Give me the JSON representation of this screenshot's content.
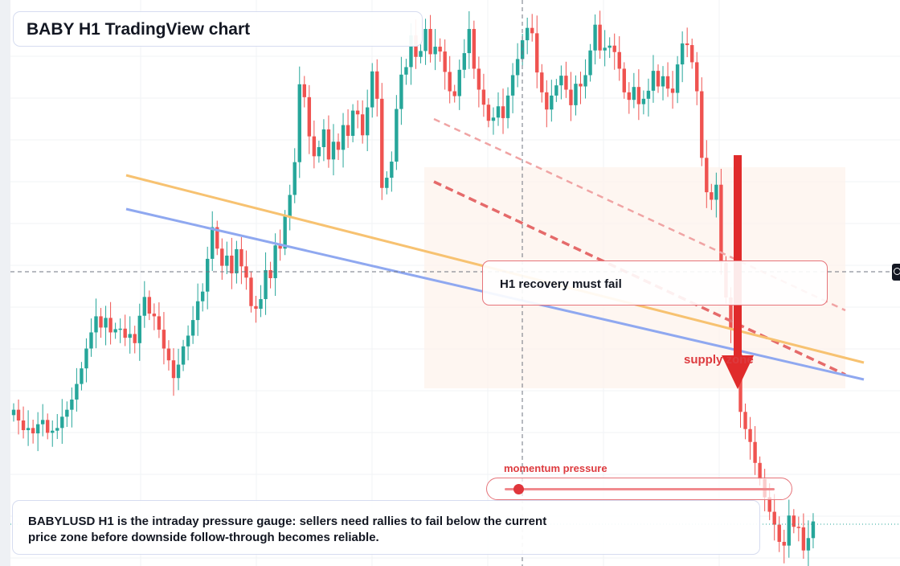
{
  "title": "BABY H1 TradingView chart",
  "note": "H1 recovery must fail",
  "supply_label": "supply zone",
  "gauge": {
    "label": "momentum pressure",
    "level": 0.05
  },
  "caption": "BABYLUSD H1 is the intraday pressure gauge: sellers need rallies to fail below the current price zone before downside follow-through becomes reliable.",
  "colors": {
    "up": "#26a69a",
    "down": "#ef5350",
    "ma_fast": "#f7c271",
    "ma_slow": "#8fa8f0",
    "trend": "#e05a5a",
    "arrow": "#e02b2b",
    "zone": "#fdf3ec"
  },
  "chart_data": {
    "type": "candlestick",
    "symbol": "BABYLUSD",
    "timeframe": "H1",
    "ylim": [
      0,
      100
    ],
    "series": [
      {
        "name": "candles",
        "values": [
          [
            0,
            27.0
          ],
          [
            1,
            25.0
          ],
          [
            2,
            23.2
          ],
          [
            3,
            23.6
          ],
          [
            4,
            22.6
          ],
          [
            5,
            24.3
          ],
          [
            6,
            25.1
          ],
          [
            7,
            22.7
          ],
          [
            8,
            23.1
          ],
          [
            9,
            23.6
          ],
          [
            10,
            25.7
          ],
          [
            11,
            27.0
          ],
          [
            12,
            28.9
          ],
          [
            13,
            31.8
          ],
          [
            14,
            34.7
          ],
          [
            15,
            38.4
          ],
          [
            16,
            41.4
          ],
          [
            17,
            44.4
          ],
          [
            18,
            42.3
          ],
          [
            19,
            44.1
          ],
          [
            20,
            41.4
          ],
          [
            21,
            42.0
          ],
          [
            22,
            42.1
          ],
          [
            23,
            40.4
          ],
          [
            24,
            41.1
          ],
          [
            25,
            39.4
          ],
          [
            26,
            44.5
          ],
          [
            27,
            48.0
          ],
          [
            28,
            44.9
          ],
          [
            29,
            44.4
          ],
          [
            30,
            41.9
          ],
          [
            31,
            38.4
          ],
          [
            32,
            36.2
          ],
          [
            33,
            32.9
          ],
          [
            34,
            35.4
          ],
          [
            35,
            38.8
          ],
          [
            36,
            40.8
          ],
          [
            37,
            43.7
          ],
          [
            38,
            47.2
          ],
          [
            39,
            49.0
          ],
          [
            40,
            55.1
          ],
          [
            41,
            61.0
          ],
          [
            42,
            57.0
          ],
          [
            43,
            53.8
          ],
          [
            44,
            55.7
          ],
          [
            45,
            52.4
          ],
          [
            46,
            56.9
          ],
          [
            47,
            53.7
          ],
          [
            48,
            51.6
          ],
          [
            49,
            46.3
          ],
          [
            50,
            45.8
          ],
          [
            51,
            47.6
          ],
          [
            52,
            53.0
          ],
          [
            53,
            51.5
          ],
          [
            54,
            57.6
          ],
          [
            55,
            57.0
          ],
          [
            56,
            63.0
          ],
          [
            57,
            67.0
          ],
          [
            58,
            73.1
          ],
          [
            59,
            87.6
          ],
          [
            60,
            85.2
          ],
          [
            61,
            77.9
          ],
          [
            62,
            74.2
          ],
          [
            63,
            75.9
          ],
          [
            64,
            79.2
          ],
          [
            65,
            73.6
          ],
          [
            66,
            76.9
          ],
          [
            67,
            75.4
          ],
          [
            68,
            80.0
          ],
          [
            69,
            78.0
          ],
          [
            70,
            82.7
          ],
          [
            71,
            82.0
          ],
          [
            72,
            78.1
          ],
          [
            73,
            83.3
          ],
          [
            74,
            90.0
          ],
          [
            75,
            84.9
          ],
          [
            76,
            68.3
          ],
          [
            77,
            70.2
          ],
          [
            78,
            73.2
          ],
          [
            79,
            83.0
          ],
          [
            80,
            89.4
          ],
          [
            81,
            90.8
          ],
          [
            82,
            96.7
          ],
          [
            83,
            92.7
          ],
          [
            84,
            93.8
          ],
          [
            85,
            97.9
          ],
          [
            86,
            93.2
          ],
          [
            87,
            94.6
          ],
          [
            88,
            93.7
          ],
          [
            89,
            89.9
          ],
          [
            90,
            86.3
          ],
          [
            91,
            85.4
          ],
          [
            92,
            90.3
          ],
          [
            93,
            93.4
          ],
          [
            94,
            97.9
          ],
          [
            95,
            90.5
          ],
          [
            96,
            86.6
          ],
          [
            97,
            83.8
          ],
          [
            98,
            80.8
          ],
          [
            99,
            81.4
          ],
          [
            100,
            83.5
          ],
          [
            101,
            81.3
          ],
          [
            102,
            85.5
          ],
          [
            103,
            89.3
          ],
          [
            104,
            92.3
          ],
          [
            105,
            95.8
          ],
          [
            106,
            98.1
          ],
          [
            107,
            97.1
          ],
          [
            108,
            89.8
          ],
          [
            109,
            86.1
          ],
          [
            110,
            82.9
          ],
          [
            111,
            85.5
          ],
          [
            112,
            87.4
          ],
          [
            113,
            89.2
          ],
          [
            114,
            86.6
          ],
          [
            115,
            83.7
          ],
          [
            116,
            87.7
          ],
          [
            117,
            87.2
          ],
          [
            118,
            89.3
          ],
          [
            119,
            93.9
          ],
          [
            120,
            98.7
          ],
          [
            121,
            93.9
          ],
          [
            122,
            94.4
          ],
          [
            123,
            94.8
          ],
          [
            124,
            93.6
          ],
          [
            125,
            90.5
          ],
          [
            126,
            86.1
          ],
          [
            127,
            84.7
          ],
          [
            128,
            87.1
          ],
          [
            129,
            83.9
          ],
          [
            130,
            84.9
          ],
          [
            131,
            86.4
          ],
          [
            132,
            90.1
          ],
          [
            133,
            87.2
          ],
          [
            134,
            89.1
          ],
          [
            135,
            86.8
          ],
          [
            136,
            86.0
          ],
          [
            137,
            91.3
          ],
          [
            138,
            95.2
          ],
          [
            139,
            94.9
          ],
          [
            140,
            91.7
          ],
          [
            141,
            86.3
          ],
          [
            142,
            73.9
          ],
          [
            143,
            67.5
          ],
          [
            144,
            66.1
          ],
          [
            145,
            68.9
          ],
          [
            146,
            54.4
          ],
          [
            147,
            47.9
          ],
          [
            148,
            42.0
          ],
          [
            149,
            37.3
          ],
          [
            150,
            26.6
          ],
          [
            151,
            23.4
          ],
          [
            152,
            21.0
          ],
          [
            153,
            17.1
          ],
          [
            154,
            14.1
          ],
          [
            155,
            10.7
          ],
          [
            156,
            8.0
          ],
          [
            157,
            5.6
          ],
          [
            158,
            2.4
          ],
          [
            159,
            1.7
          ],
          [
            160,
            7.3
          ],
          [
            161,
            5.2
          ],
          [
            162,
            5.1
          ],
          [
            163,
            0.8
          ],
          [
            164,
            3.1
          ],
          [
            165,
            6.2
          ]
        ]
      },
      {
        "name": "moving average fast",
        "values": [
          [
            0,
            62.0
          ],
          [
            165,
            31.0
          ]
        ]
      },
      {
        "name": "moving average slow",
        "values": [
          [
            0,
            53.5
          ],
          [
            165,
            28.0
          ]
        ]
      }
    ]
  }
}
